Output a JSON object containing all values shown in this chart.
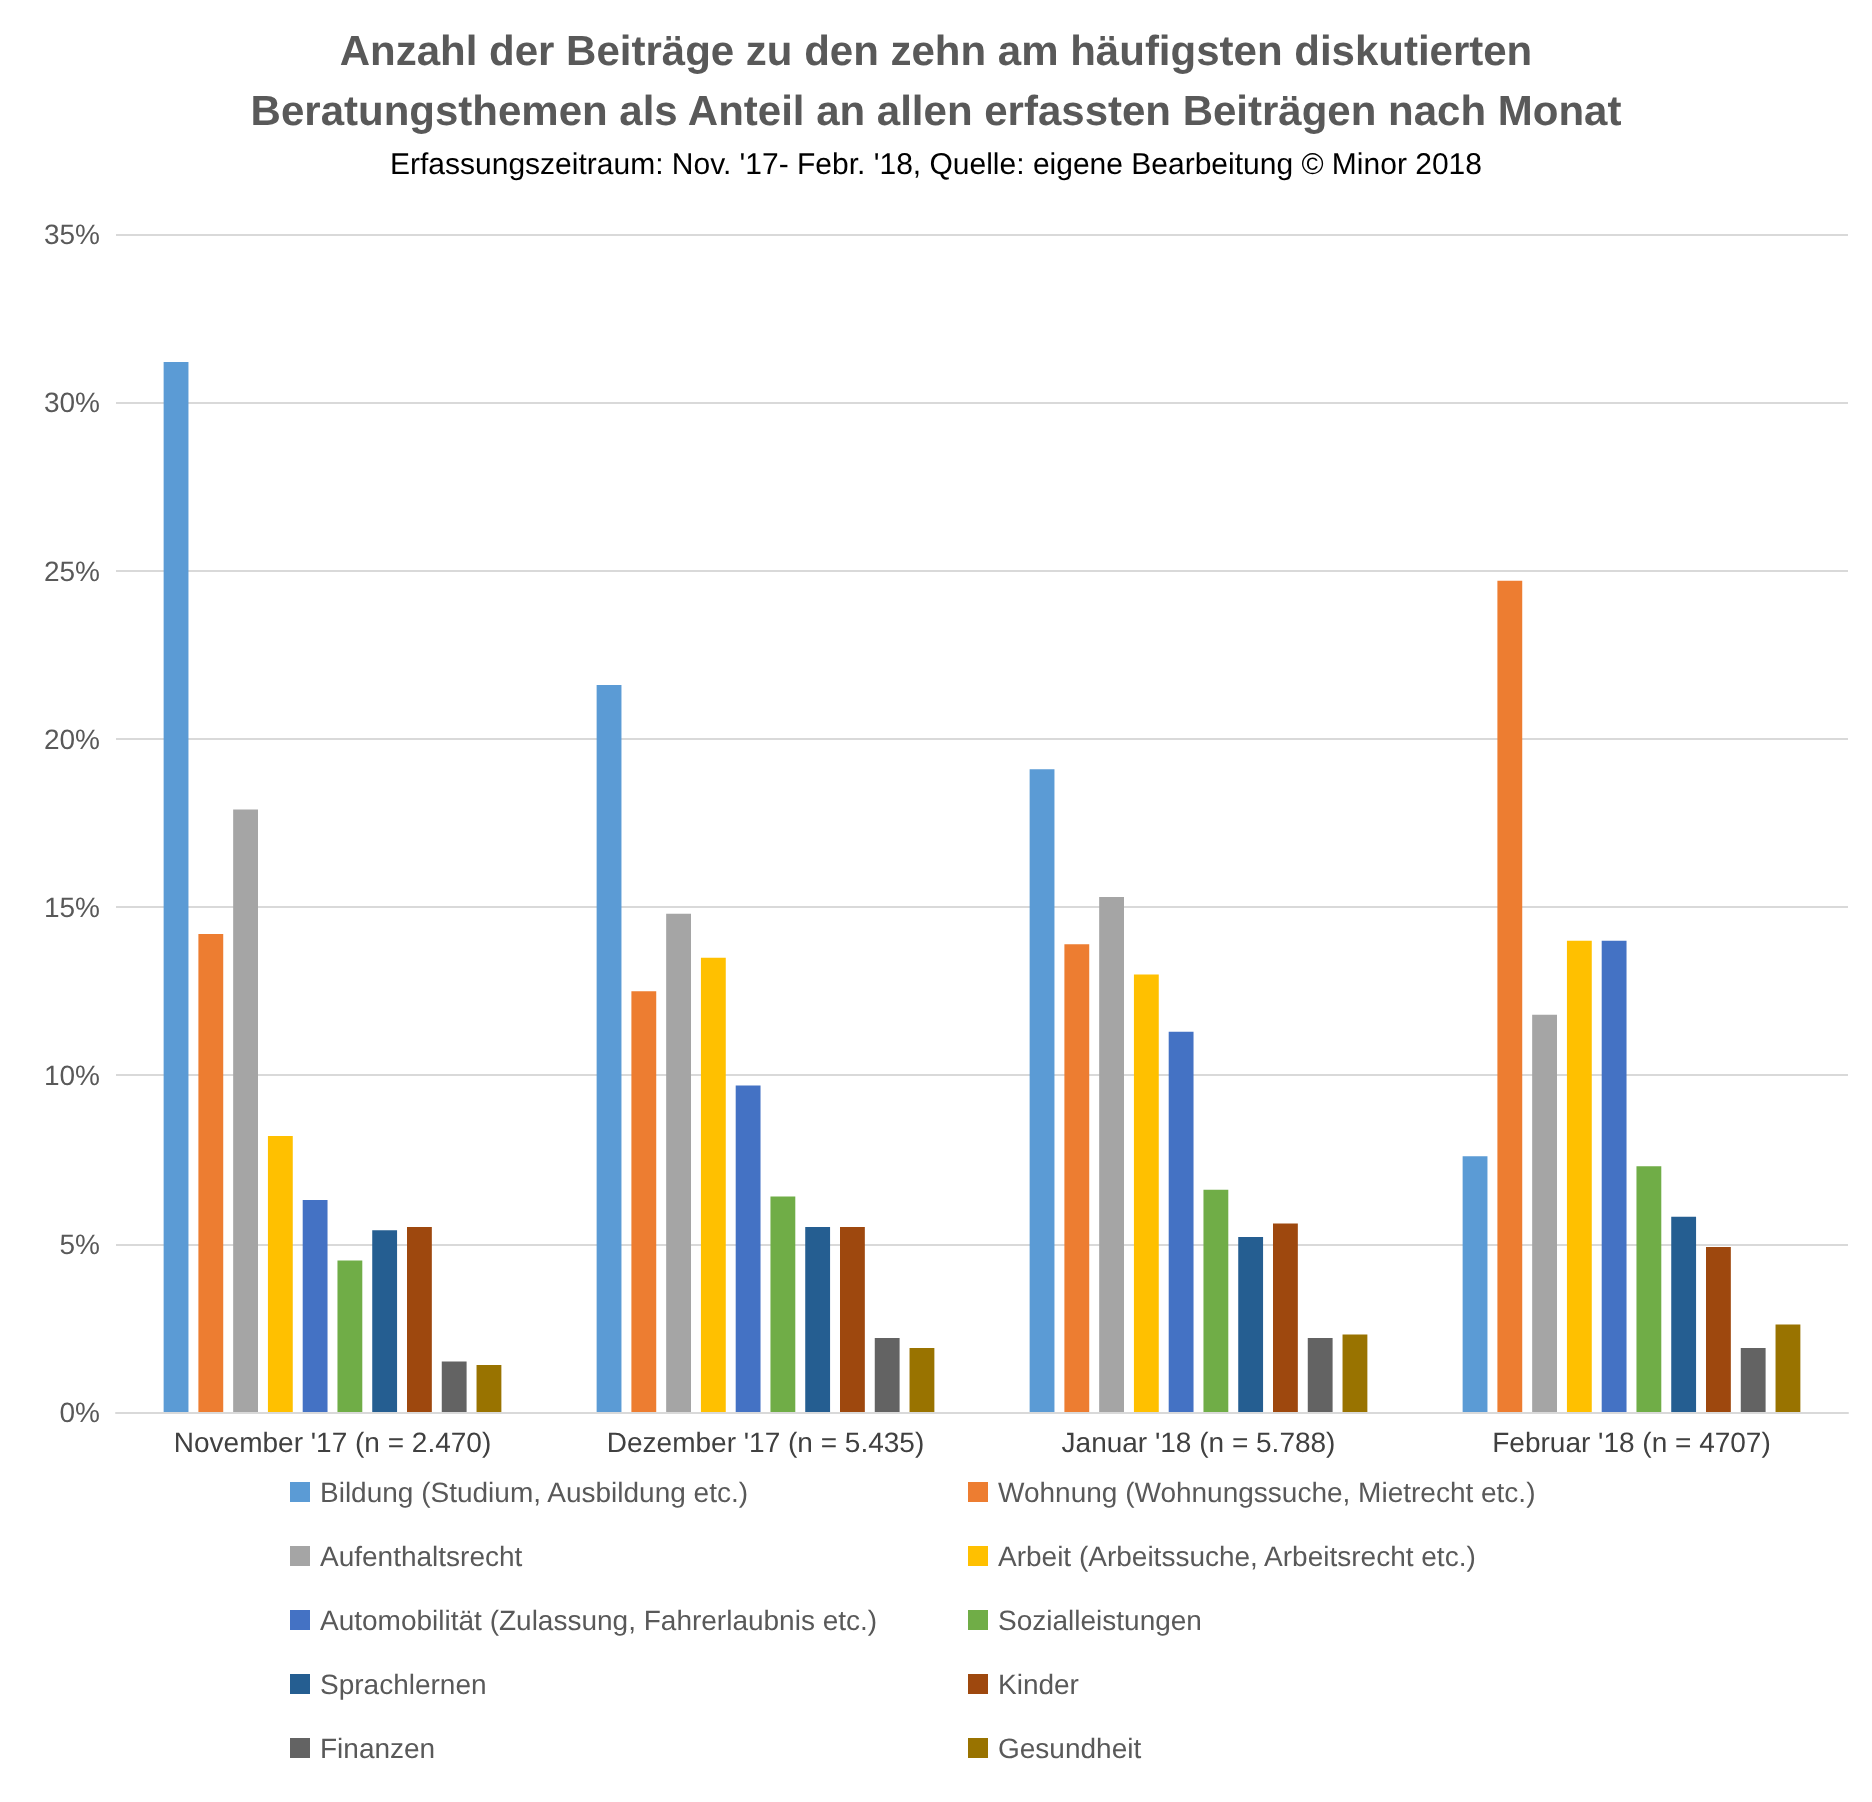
{
  "chart_data": {
    "type": "bar",
    "title": "Anzahl der Beiträge zu den zehn am häufigsten diskutierten\nBeratungsthemen als Anteil an allen erfassten Beiträgen nach Monat",
    "subtitle": "Erfassungszeitraum: Nov. '17- Febr. '18, Quelle: eigene Bearbeitung © Minor 2018",
    "categories": [
      "November '17 (n = 2.470)",
      "Dezember '17 (n = 5.435)",
      "Januar '18 (n = 5.788)",
      "Februar '18 (n = 4707)"
    ],
    "series": [
      {
        "name": "Bildung (Studium, Ausbildung etc.)",
        "color": "#5b9bd5",
        "values": [
          31.2,
          21.6,
          19.1,
          7.6
        ]
      },
      {
        "name": "Wohnung (Wohnungssuche, Mietrecht etc.)",
        "color": "#ed7d31",
        "values": [
          14.2,
          12.5,
          13.9,
          24.7
        ]
      },
      {
        "name": "Aufenthaltsrecht",
        "color": "#a5a5a5",
        "values": [
          17.9,
          14.8,
          15.3,
          11.8
        ]
      },
      {
        "name": "Arbeit (Arbeitssuche, Arbeitsrecht etc.)",
        "color": "#ffc000",
        "values": [
          8.2,
          13.5,
          13.0,
          14.0
        ]
      },
      {
        "name": "Automobilität (Zulassung, Fahrerlaubnis etc.)",
        "color": "#4472c4",
        "values": [
          6.3,
          9.7,
          11.3,
          14.0
        ]
      },
      {
        "name": "Sozialleistungen",
        "color": "#70ad47",
        "values": [
          4.5,
          6.4,
          6.6,
          7.3
        ]
      },
      {
        "name": "Sprachlernen",
        "color": "#255e91",
        "values": [
          5.4,
          5.5,
          5.2,
          5.8
        ]
      },
      {
        "name": "Kinder",
        "color": "#9e480e",
        "values": [
          5.5,
          5.5,
          5.6,
          4.9
        ]
      },
      {
        "name": "Finanzen",
        "color": "#636363",
        "values": [
          1.5,
          2.2,
          2.2,
          1.9
        ]
      },
      {
        "name": "Gesundheit",
        "color": "#997300",
        "values": [
          1.4,
          1.9,
          2.3,
          2.6
        ]
      }
    ],
    "ylim": [
      0,
      35
    ],
    "yticks": [
      {
        "value": 0,
        "label": "0%"
      },
      {
        "value": 5,
        "label": "5%"
      },
      {
        "value": 10,
        "label": "10%"
      },
      {
        "value": 15,
        "label": "15%"
      },
      {
        "value": 20,
        "label": "20%"
      },
      {
        "value": 25,
        "label": "25%"
      },
      {
        "value": 30,
        "label": "30%"
      },
      {
        "value": 35,
        "label": "35%"
      }
    ],
    "grid": "y",
    "legend": "bottom"
  }
}
